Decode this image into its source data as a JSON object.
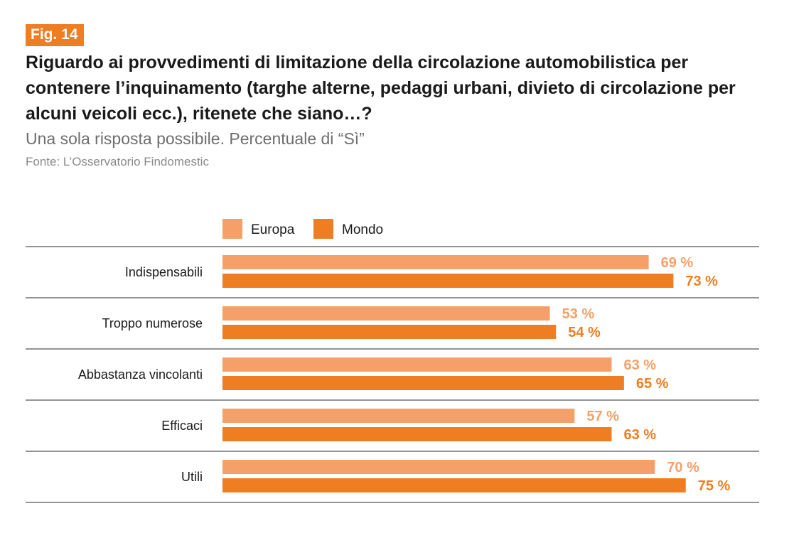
{
  "figure": {
    "tag": "Fig. 14",
    "title": "Riguardo ai provvedimenti di limitazione della circolazione automobilistica per contenere l’inquinamento (targhe alterne, pedaggi urbani, divieto di circolazione per alcuni veicoli ecc.), ritenete che siano…?",
    "subtitle": "Una sola risposta possibile. Percentuale di “Sì”",
    "source": "Fonte: L’Osservatorio Findomestic"
  },
  "colors": {
    "accent": "#ef7d22",
    "europa": "#f5a068",
    "mondo": "#ef7d22",
    "rule": "#555555"
  },
  "chart_data": {
    "type": "bar",
    "orientation": "horizontal",
    "categories": [
      "Indispensabili",
      "Troppo numerose",
      "Abbastanza vincolanti",
      "Efficaci",
      "Utili"
    ],
    "series": [
      {
        "name": "Europa",
        "values": [
          69,
          53,
          63,
          57,
          70
        ],
        "color": "#f5a068"
      },
      {
        "name": "Mondo",
        "values": [
          73,
          54,
          65,
          63,
          75
        ],
        "color": "#ef7d22"
      }
    ],
    "value_suffix": " %",
    "xlim": [
      0,
      100
    ],
    "legend_position": "top",
    "grid": false
  }
}
